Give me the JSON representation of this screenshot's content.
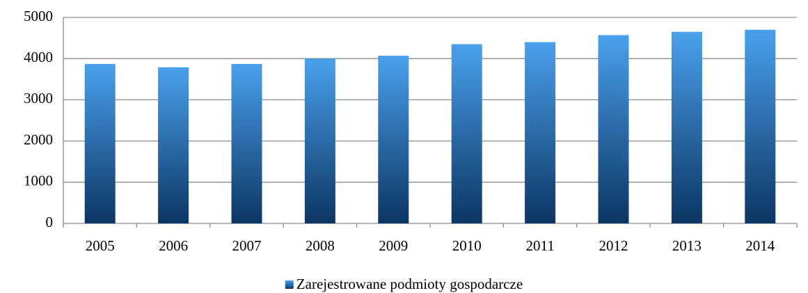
{
  "chart_data": {
    "type": "bar",
    "categories": [
      "2005",
      "2006",
      "2007",
      "2008",
      "2009",
      "2010",
      "2011",
      "2012",
      "2013",
      "2014"
    ],
    "series": [
      {
        "name": "Zarejestrowane podmioty gospodarcze",
        "color": "#4aa0ec",
        "values": [
          3870,
          3790,
          3870,
          4000,
          4070,
          4350,
          4400,
          4570,
          4650,
          4700
        ]
      }
    ],
    "ylim": [
      0,
      5000
    ],
    "yticks": [
      0,
      1000,
      2000,
      3000,
      4000,
      5000
    ],
    "grid": true,
    "legend": "bottom"
  }
}
